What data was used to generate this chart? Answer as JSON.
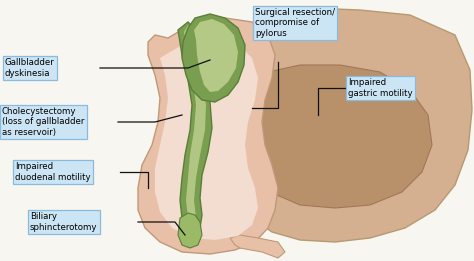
{
  "bg_color": "#f2f2ee",
  "labels": {
    "gallbladder_dyskinesia": "Gallbladder\ndyskinesia",
    "cholecystectomy": "Cholecystectomy\n(loss of gallbladder\nas reservoir)",
    "surgical_resection": "Surgical resection/\ncompromise of\npylorus",
    "impaired_duodenal": "Impaired\nduodenal motility",
    "biliary": "Biliary\nsphincterotomy",
    "impaired_gastric": "Impaired\ngastric motility"
  },
  "box_facecolor": "#cce5f5",
  "box_edgecolor": "#88bbdd",
  "stomach_outer_color": "#d4b090",
  "stomach_inner_color": "#b8906a",
  "duodenum_outer_color": "#e8c0a8",
  "duodenum_inner_color": "#f2ddd0",
  "bile_outer_color": "#7a9e50",
  "bile_mid_color": "#9aba68",
  "bile_light_color": "#c8d898",
  "gallbladder_color": "#8aaa58",
  "line_color": "#111111",
  "white_bg": "#f8f6f0"
}
